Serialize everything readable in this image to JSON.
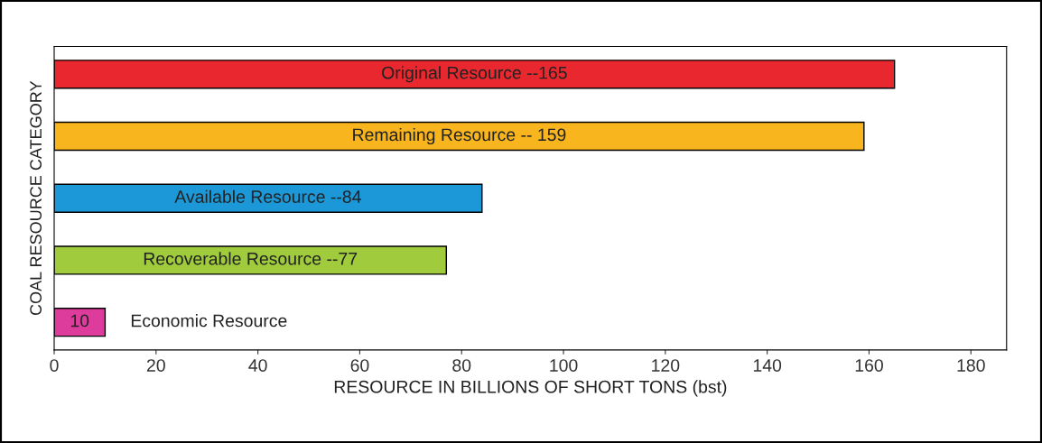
{
  "chart_data": {
    "type": "bar",
    "orientation": "horizontal",
    "xlabel": "RESOURCE IN BILLIONS OF SHORT TONS (bst)",
    "ylabel": "COAL RESOURCE CATEGORY",
    "categories": [
      null,
      null,
      null,
      null,
      null
    ],
    "values": [
      165,
      159,
      84,
      77,
      10
    ],
    "colors": [
      "#e8282e",
      "#f8b51e",
      "#1c98d8",
      "#9fcb3d",
      "#de3c9c"
    ],
    "value_labels": [
      null,
      null,
      null,
      null,
      "10"
    ],
    "annotations": [
      "Original Resource --165",
      "Remaining Resource -- 159",
      "Available Resource --84",
      "Recoverable Resource --77",
      "Economic Resource"
    ],
    "xlim": [
      0,
      187
    ],
    "xticks": [
      0,
      20,
      40,
      60,
      80,
      100,
      120,
      140,
      160,
      180
    ],
    "grid": false,
    "legend": false
  }
}
